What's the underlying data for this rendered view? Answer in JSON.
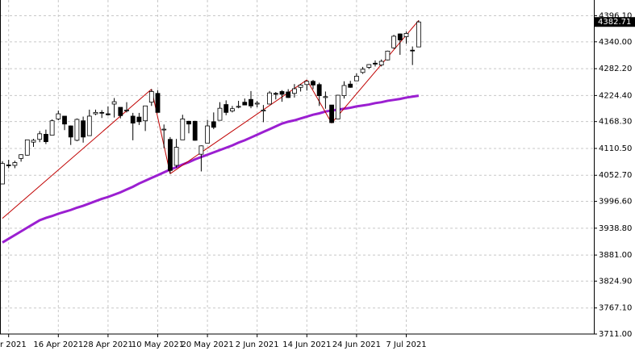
{
  "chart_data": {
    "type": "candlestick",
    "categories": [
      null,
      "r 2021",
      null,
      null,
      null,
      null,
      null,
      null,
      null,
      "16 Apr 2021",
      null,
      null,
      null,
      null,
      null,
      null,
      null,
      "28 Apr 2021",
      null,
      null,
      null,
      null,
      null,
      null,
      null,
      "10 May 2021",
      null,
      null,
      null,
      null,
      null,
      null,
      null,
      "20 May 2021",
      null,
      null,
      null,
      null,
      null,
      null,
      null,
      "2 Jun 2021",
      null,
      null,
      null,
      null,
      null,
      null,
      null,
      "14 Jun 2021",
      null,
      null,
      null,
      null,
      null,
      null,
      null,
      "24 Jun 2021",
      null,
      null,
      null,
      null,
      null,
      null,
      null,
      "7 Jul 2021",
      null,
      null
    ],
    "open": [
      4034,
      4075,
      4074,
      4089,
      4096,
      4124,
      4130,
      4141,
      4139,
      4174,
      4180,
      4159,
      4128,
      4170,
      4138,
      4185,
      4188,
      4185,
      4206,
      4199,
      4192,
      4180,
      4178,
      4170,
      4210,
      4229,
      4151,
      4130,
      4074,
      4129,
      4169,
      4169,
      4098,
      4122,
      4168,
      4171,
      4205,
      4191,
      4201,
      4210,
      4216,
      4206,
      4191,
      4206,
      4229,
      4233,
      4232,
      4229,
      4242,
      4248,
      4255,
      4248,
      4220,
      4204,
      4174,
      4224,
      4249,
      4256,
      4274,
      4285,
      4294,
      4290,
      4301,
      4327,
      4357,
      4351,
      4322,
      4329
    ],
    "high": [
      4083,
      4086,
      4084,
      4098,
      4129,
      4131,
      4148,
      4151,
      4173,
      4192,
      4180,
      4160,
      4175,
      4179,
      4194,
      4194,
      4193,
      4201,
      4219,
      4199,
      4210,
      4187,
      4187,
      4202,
      4238,
      4236,
      4162,
      4135,
      4131,
      4183,
      4170,
      4170,
      4117,
      4172,
      4188,
      4210,
      4214,
      4202,
      4213,
      4218,
      4234,
      4213,
      4204,
      4234,
      4232,
      4236,
      4238,
      4249,
      4249,
      4255,
      4258,
      4252,
      4233,
      4204,
      4226,
      4255,
      4256,
      4272,
      4286,
      4292,
      4300,
      4302,
      4321,
      4355,
      4358,
      4362,
      4330,
      4386
    ],
    "low": [
      4034,
      4068,
      4068,
      4082,
      4095,
      4114,
      4124,
      4120,
      4139,
      4171,
      4150,
      4118,
      4126,
      4123,
      4138,
      4182,
      4176,
      4181,
      4177,
      4175,
      4188,
      4128,
      4161,
      4148,
      4202,
      4188,
      4111,
      4056,
      4069,
      4129,
      4143,
      4127,
      4061,
      4122,
      4152,
      4171,
      4182,
      4188,
      4197,
      4204,
      4197,
      4199,
      4167,
      4206,
      4216,
      4211,
      4219,
      4220,
      4233,
      4235,
      4238,
      4202,
      4196,
      4165,
      4174,
      4218,
      4241,
      4256,
      4271,
      4282,
      4287,
      4287,
      4300,
      4325,
      4312,
      4336,
      4290,
      4329
    ],
    "close": [
      4078,
      4074,
      4080,
      4097,
      4129,
      4128,
      4142,
      4125,
      4170,
      4185,
      4163,
      4135,
      4173,
      4135,
      4180,
      4188,
      4187,
      4183,
      4211,
      4181,
      4193,
      4165,
      4168,
      4202,
      4233,
      4188,
      4152,
      4063,
      4113,
      4174,
      4163,
      4128,
      4116,
      4159,
      4156,
      4197,
      4188,
      4196,
      4201,
      4204,
      4202,
      4208,
      4193,
      4230,
      4227,
      4227,
      4220,
      4239,
      4247,
      4255,
      4247,
      4224,
      4222,
      4166,
      4225,
      4246,
      4242,
      4266,
      4281,
      4291,
      4292,
      4298,
      4320,
      4352,
      4344,
      4358,
      4321,
      4382.71
    ],
    "ma": {
      "color": "#9b1fd1",
      "values": [
        3908,
        3916,
        3924,
        3932,
        3940,
        3948,
        3956,
        3961,
        3965,
        3970,
        3974,
        3978,
        3983,
        3987,
        3992,
        3997,
        4002,
        4006,
        4011,
        4016,
        4022,
        4028,
        4035,
        4041,
        4047,
        4053,
        4059,
        4065,
        4070,
        4076,
        4081,
        4087,
        4092,
        4097,
        4102,
        4107,
        4112,
        4117,
        4123,
        4128,
        4134,
        4140,
        4146,
        4152,
        4158,
        4164,
        4168,
        4171,
        4175,
        4179,
        4183,
        4186,
        4190,
        4192,
        4194,
        4196,
        4198,
        4201,
        4203,
        4205,
        4208,
        4210,
        4213,
        4215,
        4217,
        4220,
        4222,
        4224
      ]
    },
    "zigzag": {
      "color": "#c00000",
      "values": [
        3960,
        null,
        null,
        null,
        null,
        null,
        null,
        null,
        null,
        null,
        null,
        null,
        null,
        null,
        null,
        null,
        null,
        null,
        null,
        null,
        null,
        null,
        null,
        null,
        4238,
        null,
        null,
        4056,
        null,
        null,
        null,
        null,
        null,
        null,
        null,
        null,
        null,
        null,
        null,
        null,
        null,
        null,
        null,
        null,
        null,
        null,
        null,
        null,
        null,
        4258,
        null,
        null,
        null,
        4165,
        null,
        null,
        null,
        null,
        null,
        null,
        null,
        null,
        null,
        null,
        null,
        null,
        null,
        4386
      ]
    },
    "up_color": "#ffffff",
    "down_color": "#000000",
    "current_price": {
      "value": 4382.71,
      "label": "4382.71"
    },
    "ylim": [
      3711,
      4430
    ],
    "yticks": [
      {
        "value": 4396.1,
        "label": "4396.10"
      },
      {
        "value": 4340,
        "label": "4340.00"
      },
      {
        "value": 4282.2,
        "label": "4282.20"
      },
      {
        "value": 4224.4,
        "label": "4224.40"
      },
      {
        "value": 4168.3,
        "label": "4168.30"
      },
      {
        "value": 4110.5,
        "label": "4110.50"
      },
      {
        "value": 4052.7,
        "label": "4052.70"
      },
      {
        "value": 3996.6,
        "label": "3996.60"
      },
      {
        "value": 3938.8,
        "label": "3938.80"
      },
      {
        "value": 3881,
        "label": "3881.00"
      },
      {
        "value": 3824.9,
        "label": "3824.90"
      },
      {
        "value": 3767.1,
        "label": "3767.10"
      },
      {
        "value": 3711,
        "label": "3711.00"
      }
    ],
    "grid": true
  }
}
